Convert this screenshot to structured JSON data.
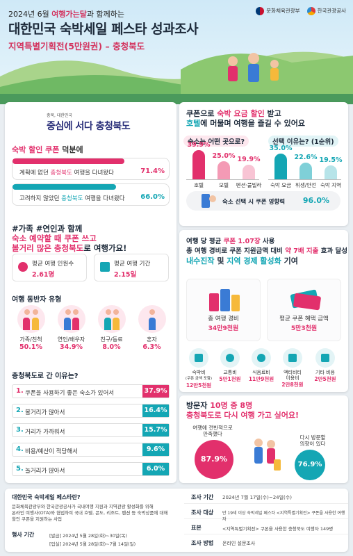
{
  "header": {
    "top_prefix": "2024년 6월",
    "top_brand": "여행가는달",
    "top_suffix": "과 함께하는",
    "title": "대한민국 숙박세일 페스타 성과조사",
    "subtitle": "지역특별기획전(5만원권) – 충청북도",
    "logo1": "문화체육관광부",
    "logo2": "한국관광공사"
  },
  "left": {
    "chung_small": "충북, 대한민국",
    "chung_big": "중심에 서다 충청북도",
    "coupon_heading_pink": "숙박 할인 쿠폰",
    "coupon_heading_rest": " 덕분에",
    "row1_a": "계획에 없던 ",
    "row1_b": "충청북도",
    "row1_c": " 여행을 다녀왔다",
    "row1_pct": "71.4%",
    "row1_value": 71.4,
    "row2_a": "고려하지 않았던 ",
    "row2_b": "충청북도",
    "row2_c": " 여행을 다녀왔다",
    "row2_pct": "66.0%",
    "row2_value": 66.0,
    "hash1": "#가족 #연인과 함께",
    "hash2": "숙소 예약할 때 쿠폰 쓰고",
    "hash3a": "볼거리 많은 충청북도",
    "hash3b": "로 여행가요!",
    "avg_people_label": "평균 여행 인원수",
    "avg_people_value": "2.61명",
    "avg_period_label": "평균 여행 기간",
    "avg_period_value": "2.15일",
    "companion_title": "여행 동반자 유형",
    "companions": [
      {
        "label": "가족/친척",
        "value": "50.1%"
      },
      {
        "label": "연인/배우자",
        "value": "34.9%"
      },
      {
        "label": "친구/동료",
        "value": "8.0%"
      },
      {
        "label": "혼자",
        "value": "6.3%"
      }
    ],
    "why_title": "충청북도로 간 이유는?",
    "reasons": [
      {
        "num": "1.",
        "text": "쿠폰을 사용하기 좋은 숙소가 있어서",
        "pct": "37.9%"
      },
      {
        "num": "2.",
        "text": "볼거리가 많아서",
        "pct": "16.4%"
      },
      {
        "num": "3.",
        "text": "거리가 가까워서",
        "pct": "15.7%"
      },
      {
        "num": "4.",
        "text": "비용/예산이 적당해서",
        "pct": "9.6%"
      },
      {
        "num": "5.",
        "text": "놀거리가 많아서",
        "pct": "6.0%"
      }
    ]
  },
  "right_top": {
    "line1a": "쿠폰으로 ",
    "line1b": "숙박 요금 할인",
    "line1c": " 받고",
    "line2a": "호텔",
    "line2b": "에 머물며 여행을 즐길 수 있어요",
    "q1": "숙소는 어떤 곳으로?",
    "q2": "선택 이유는? (1순위)",
    "lodging": [
      {
        "label": "호텔",
        "pct": "39.9%",
        "value": 39.9
      },
      {
        "label": "모텔",
        "pct": "25.0%",
        "value": 25.0
      },
      {
        "label": "펜션·풀빌라",
        "pct": "19.9%",
        "value": 19.9
      }
    ],
    "reasons": [
      {
        "label": "숙박 요금",
        "pct": "35.0%",
        "value": 35.0
      },
      {
        "label": "위생/안전",
        "pct": "22.6%",
        "value": 22.6
      },
      {
        "label": "숙박 지역",
        "pct": "19.5%",
        "value": 19.5
      }
    ],
    "influence_label": "숙소 선택 시 쿠폰 영향력",
    "influence_value": "96.0%"
  },
  "right_mid": {
    "l1a": "여행 당 평균 ",
    "l1b": "쿠폰 1.07장",
    "l1c": " 사용",
    "l2a": "총 여행 경비로 쿠폰 지원금액 대비 ",
    "l2b": "약 7배 지출",
    "l2c": " 효과 달성",
    "l3a": "내수진작",
    "l3b": " 및 ",
    "l3c": "지역 경제 활성화",
    "l3d": " 기여",
    "total_label": "총 여행 경비",
    "total_value": "34만9천원",
    "coupon_label": "평균 쿠폰 혜택 금액",
    "coupon_value": "5만3천원",
    "costs": [
      {
        "label": "숙박비",
        "sub": "(쿠폰 금액 포함)",
        "value": "12만5천원"
      },
      {
        "label": "교통비",
        "sub": "",
        "value": "5만1천원"
      },
      {
        "label": "식음료비",
        "sub": "",
        "value": "11만9천원"
      },
      {
        "label": "액티비티",
        "sub": "이용비",
        "value": "2만8천원"
      },
      {
        "label": "기타 비용",
        "sub": "",
        "value": "2만5천원"
      }
    ]
  },
  "right_bot": {
    "t1a": "방문자 ",
    "t1b": "10명 중 8명",
    "t2": "충청북도로 다시 여행 가고 싶어요!",
    "sat_label1": "여행에 전반적으로",
    "sat_label2": "만족했다",
    "sat_value": "87.9%",
    "re_label1": "다시 방문할",
    "re_label2": "의향이 있다",
    "re_value": "76.9%"
  },
  "bottom": {
    "what_title": "대한민국 숙박세일 페스타란?",
    "what_l1": "문화체육관광부와 한국관광공사가 국내여행 지원과 지역관광 활성화를 위해",
    "what_l2": "온라인 여행사(OTA)와 협업하여 국내 호텔, 콘도, 리조트, 펜션 등 숙박상품에 대해",
    "what_l3": "할인 쿠폰을 지원하는 사업",
    "period_key": "행사 기간",
    "period_v1": "[발급] 2024년 5월 28일(화)~30일(목)",
    "period_v2": "[입실] 2024년 5월 28일(화)~7월 14일(일)",
    "survey": [
      {
        "k": "조사 기간",
        "v": "2024년 7월 17일(수)~24일(수)"
      },
      {
        "k": "조사 대상",
        "v": "만 19세 이상 숙박세일 페스타 <지역특별기획전> 쿠폰을 사용한 여행자"
      },
      {
        "k": "표본",
        "v": "<지역특별기획전> 쿠폰을 사용한 충청북도 여행자 149명"
      },
      {
        "k": "조사 방법",
        "v": "온라인 설문조사"
      }
    ]
  },
  "colors": {
    "pink": "#e2306c",
    "teal": "#14a6b4",
    "navy": "#1d2a3a"
  }
}
